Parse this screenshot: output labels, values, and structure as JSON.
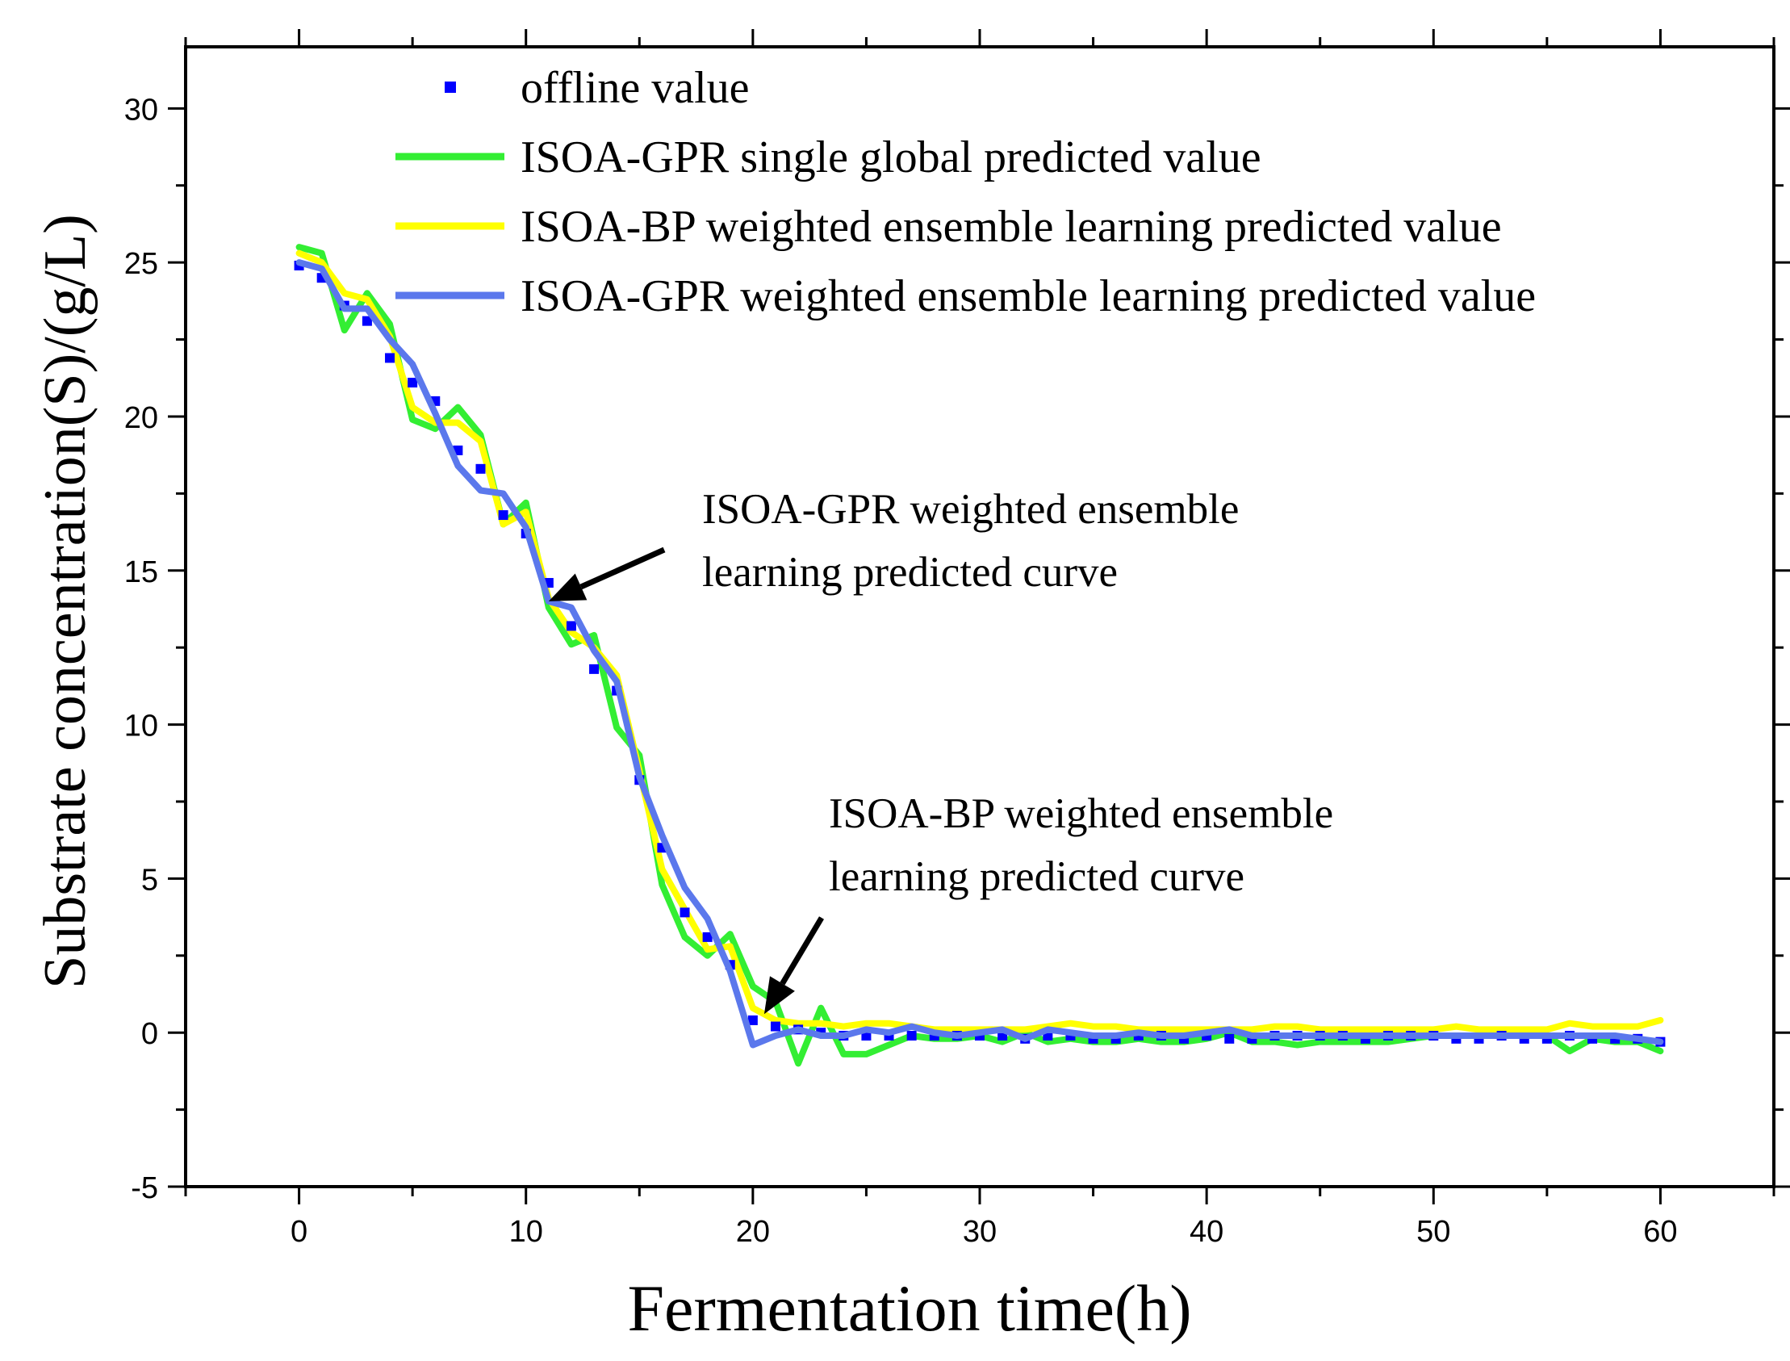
{
  "chart_data": {
    "type": "line",
    "xlabel": "Fermentation time(h)",
    "ylabel": "Substrate concentration(S)/(g/L)",
    "xlim": [
      -5,
      65
    ],
    "ylim": [
      -5,
      32
    ],
    "xticks": [
      0,
      10,
      20,
      30,
      40,
      50,
      60
    ],
    "yticks": [
      -5,
      0,
      5,
      10,
      15,
      20,
      25,
      30
    ],
    "x": [
      0,
      1,
      2,
      3,
      4,
      5,
      6,
      7,
      8,
      9,
      10,
      11,
      12,
      13,
      14,
      15,
      16,
      17,
      18,
      19,
      20,
      21,
      22,
      23,
      24,
      25,
      26,
      27,
      28,
      29,
      30,
      31,
      32,
      33,
      34,
      35,
      36,
      37,
      38,
      39,
      40,
      41,
      42,
      43,
      44,
      45,
      46,
      47,
      48,
      49,
      50,
      51,
      52,
      53,
      54,
      55,
      56,
      57,
      58,
      59,
      60
    ],
    "series": [
      {
        "name": "offline value",
        "kind": "marker",
        "color": "#0000ff",
        "values": [
          24.9,
          24.5,
          23.6,
          23.1,
          21.9,
          21.1,
          20.5,
          18.9,
          18.3,
          16.8,
          16.2,
          14.6,
          13.2,
          11.8,
          11.1,
          8.2,
          6.0,
          3.9,
          3.1,
          2.2,
          0.4,
          0.2,
          0.1,
          0.0,
          -0.1,
          -0.1,
          -0.1,
          -0.1,
          -0.1,
          -0.1,
          -0.1,
          -0.1,
          -0.2,
          -0.1,
          -0.1,
          -0.2,
          -0.2,
          -0.1,
          -0.1,
          -0.2,
          -0.1,
          -0.2,
          -0.2,
          -0.1,
          -0.1,
          -0.1,
          -0.1,
          -0.2,
          -0.1,
          -0.1,
          -0.1,
          -0.2,
          -0.2,
          -0.1,
          -0.2,
          -0.2,
          -0.1,
          -0.2,
          -0.2,
          -0.2,
          -0.3
        ]
      },
      {
        "name": "ISOA-GPR single global predicted value",
        "kind": "line",
        "color": "#33ee33",
        "values": [
          25.5,
          25.3,
          22.8,
          24.0,
          23.0,
          19.9,
          19.6,
          20.3,
          19.4,
          16.5,
          17.2,
          13.8,
          12.6,
          12.9,
          9.9,
          9.0,
          4.8,
          3.1,
          2.5,
          3.2,
          1.5,
          1.0,
          -1.0,
          0.8,
          -0.7,
          -0.7,
          -0.4,
          -0.1,
          -0.2,
          -0.2,
          -0.1,
          -0.3,
          0.0,
          -0.3,
          -0.2,
          -0.3,
          -0.3,
          -0.2,
          -0.3,
          -0.3,
          -0.2,
          0.0,
          -0.3,
          -0.3,
          -0.4,
          -0.3,
          -0.3,
          -0.3,
          -0.3,
          -0.2,
          -0.1,
          -0.1,
          -0.1,
          -0.1,
          -0.1,
          -0.1,
          -0.6,
          -0.2,
          -0.3,
          -0.3,
          -0.6
        ]
      },
      {
        "name": "ISOA-BP weighted ensemble learning predicted value",
        "kind": "line",
        "color": "#ffff00",
        "values": [
          25.3,
          25.0,
          24.0,
          23.8,
          22.6,
          20.3,
          19.8,
          19.8,
          19.2,
          16.5,
          16.9,
          14.1,
          13.0,
          12.5,
          11.6,
          8.5,
          5.3,
          4.0,
          2.7,
          2.8,
          0.8,
          0.4,
          0.3,
          0.3,
          0.2,
          0.3,
          0.3,
          0.2,
          0.1,
          0.1,
          0.1,
          0.1,
          0.1,
          0.2,
          0.3,
          0.2,
          0.2,
          0.1,
          0.1,
          0.1,
          0.1,
          0.1,
          0.1,
          0.2,
          0.2,
          0.1,
          0.1,
          0.1,
          0.1,
          0.1,
          0.1,
          0.2,
          0.1,
          0.1,
          0.1,
          0.1,
          0.3,
          0.2,
          0.2,
          0.2,
          0.4
        ]
      },
      {
        "name": "ISOA-GPR weighted ensemble learning predicted value",
        "kind": "line",
        "color": "#5b78ec",
        "values": [
          25.0,
          24.8,
          23.5,
          23.5,
          22.5,
          21.7,
          20.1,
          18.4,
          17.6,
          17.5,
          16.4,
          14.0,
          13.8,
          12.4,
          11.4,
          8.3,
          6.4,
          4.7,
          3.7,
          2.0,
          -0.4,
          -0.1,
          0.1,
          -0.1,
          -0.1,
          0.1,
          0.0,
          0.2,
          0.0,
          -0.1,
          0.0,
          0.1,
          -0.2,
          0.1,
          0.0,
          -0.1,
          -0.1,
          0.0,
          -0.1,
          -0.1,
          0.0,
          0.1,
          -0.1,
          -0.1,
          -0.1,
          -0.1,
          -0.1,
          -0.1,
          -0.1,
          -0.1,
          -0.1,
          -0.1,
          -0.1,
          -0.1,
          -0.1,
          -0.1,
          -0.1,
          -0.1,
          -0.1,
          -0.2,
          -0.3
        ]
      }
    ],
    "legend_position": "top",
    "annotations": [
      {
        "lines": [
          "ISOA-GPR weighted ensemble",
          "learning predicted curve"
        ],
        "points_to": [
          11,
          14.0
        ]
      },
      {
        "lines": [
          "ISOA-BP weighted ensemble",
          "learning predicted curve"
        ],
        "points_to": [
          20.5,
          0.6
        ]
      }
    ]
  }
}
